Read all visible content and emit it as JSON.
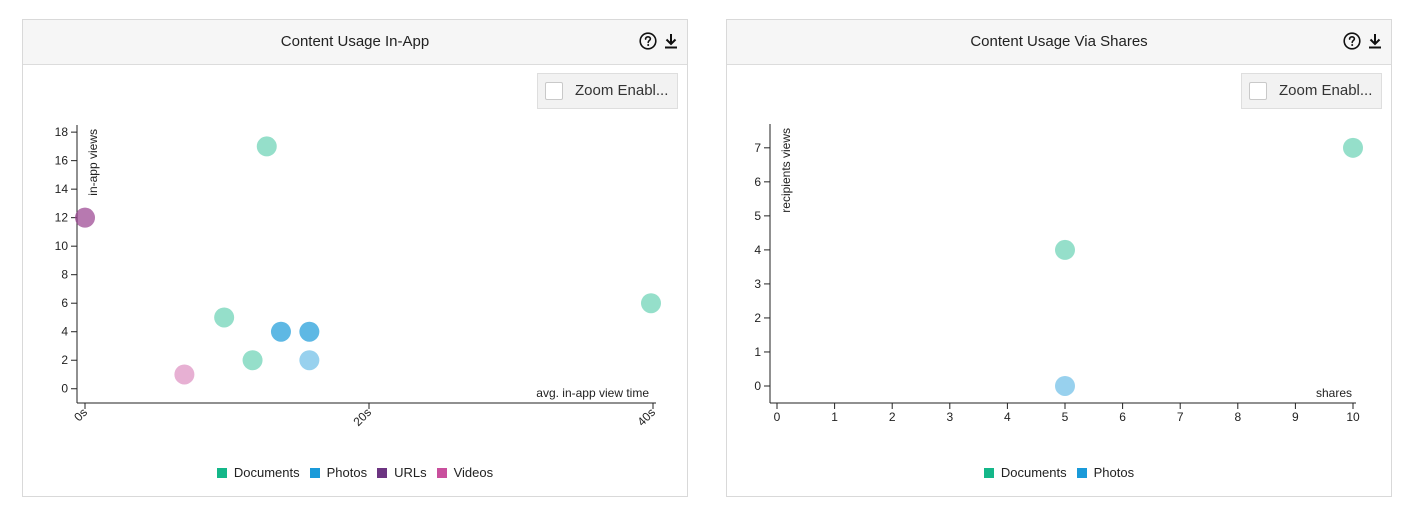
{
  "panels": [
    {
      "title": "Content Usage In-App",
      "zoom_label": "Zoom Enabl...",
      "icons": {
        "help": "help-icon",
        "download": "download-icon"
      }
    },
    {
      "title": "Content Usage Via Shares",
      "zoom_label": "Zoom Enabl...",
      "icons": {
        "help": "help-icon",
        "download": "download-icon"
      }
    }
  ],
  "colors": {
    "Documents": "#14b789",
    "Photos": "#1a9ad9",
    "URLs": "#6c3481",
    "Videos": "#c94f9d"
  },
  "chart_data": [
    {
      "type": "scatter",
      "title": "Content Usage In-App",
      "xlabel": "avg. in-app view time",
      "ylabel": "in-app views",
      "xlim": [
        0,
        40
      ],
      "ylim": [
        -1,
        18.5
      ],
      "x_ticks": [
        0,
        20,
        40
      ],
      "x_tick_labels": [
        "0s",
        "20s",
        "40s"
      ],
      "y_ticks": [
        0,
        2,
        4,
        6,
        8,
        10,
        12,
        14,
        16,
        18
      ],
      "y_tick_labels": [
        "0",
        "2",
        "4",
        "6",
        "8",
        "10",
        "12",
        "14",
        "16",
        "18"
      ],
      "legend": [
        "Documents",
        "Photos",
        "URLs",
        "Videos"
      ],
      "legend_position": "bottom",
      "grid": false,
      "points": [
        {
          "series": "Documents",
          "x": 12.8,
          "y": 17,
          "opacity": 0.45
        },
        {
          "series": "Documents",
          "x": 9.8,
          "y": 5,
          "opacity": 0.45
        },
        {
          "series": "Documents",
          "x": 11.8,
          "y": 2,
          "opacity": 0.45
        },
        {
          "series": "Documents",
          "x": 40,
          "y": 6,
          "opacity": 0.45
        },
        {
          "series": "Photos",
          "x": 13.8,
          "y": 4,
          "opacity": 0.7
        },
        {
          "series": "Photos",
          "x": 15.8,
          "y": 4,
          "opacity": 0.7
        },
        {
          "series": "Photos",
          "x": 15.8,
          "y": 2,
          "opacity": 0.45
        },
        {
          "series": "URLs",
          "x": 0,
          "y": 12,
          "opacity": 0.55
        },
        {
          "series": "Videos",
          "x": 7,
          "y": 1,
          "opacity": 0.45
        },
        {
          "series": "Videos",
          "x": 0,
          "y": 12,
          "opacity": 0.35
        }
      ]
    },
    {
      "type": "scatter",
      "title": "Content Usage Via Shares",
      "xlabel": "shares",
      "ylabel": "recipients views",
      "xlim": [
        0,
        10
      ],
      "ylim": [
        -0.5,
        7.7
      ],
      "x_ticks": [
        0,
        1,
        2,
        3,
        4,
        5,
        6,
        7,
        8,
        9,
        10
      ],
      "x_tick_labels": [
        "0",
        "1",
        "2",
        "3",
        "4",
        "5",
        "6",
        "7",
        "8",
        "9",
        "10"
      ],
      "y_ticks": [
        0,
        1,
        2,
        3,
        4,
        5,
        6,
        7
      ],
      "y_tick_labels": [
        "0",
        "1",
        "2",
        "3",
        "4",
        "5",
        "6",
        "7"
      ],
      "legend": [
        "Documents",
        "Photos"
      ],
      "legend_position": "bottom",
      "grid": false,
      "points": [
        {
          "series": "Documents",
          "x": 10,
          "y": 7,
          "opacity": 0.45
        },
        {
          "series": "Documents",
          "x": 5,
          "y": 4,
          "opacity": 0.45
        },
        {
          "series": "Photos",
          "x": 5,
          "y": 0,
          "opacity": 0.45
        }
      ]
    }
  ]
}
